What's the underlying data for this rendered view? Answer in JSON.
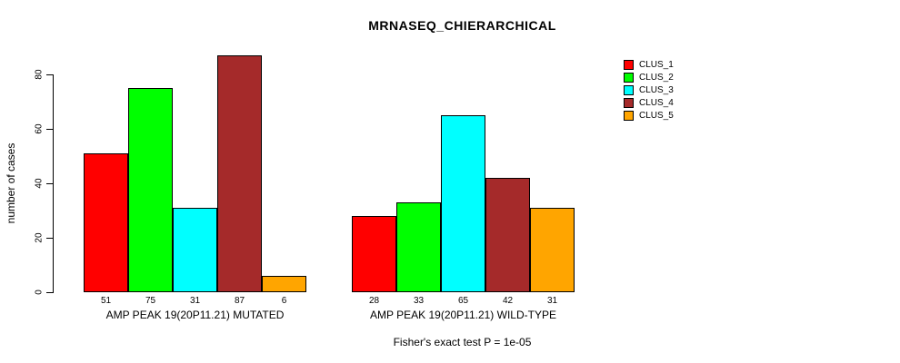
{
  "chart_data": {
    "type": "bar",
    "title": "MRNASEQ_CHIERARCHICAL",
    "ylabel": "number of cases",
    "xlabel": "",
    "ylim": [
      0,
      90
    ],
    "yticks": [
      0,
      20,
      40,
      60,
      80
    ],
    "grid": false,
    "categories": [
      "AMP PEAK 19(20P11.21) MUTATED",
      "AMP PEAK 19(20P11.21) WILD-TYPE"
    ],
    "series": [
      {
        "name": "CLUS_1",
        "color": "#FF0000",
        "values": [
          51,
          28
        ]
      },
      {
        "name": "CLUS_2",
        "color": "#00FF00",
        "values": [
          75,
          33
        ]
      },
      {
        "name": "CLUS_3",
        "color": "#00FFFF",
        "values": [
          31,
          65
        ]
      },
      {
        "name": "CLUS_4",
        "color": "#A52A2A",
        "values": [
          87,
          42
        ]
      },
      {
        "name": "CLUS_5",
        "color": "#FFA500",
        "values": [
          6,
          31
        ]
      }
    ],
    "bar_value_labels": {
      "MUTATED": [
        51,
        75,
        31,
        87,
        6
      ],
      "WILD-TYPE": [
        28,
        33,
        65,
        42,
        31
      ]
    },
    "legend": {
      "position": "right",
      "entries": [
        "CLUS_1",
        "CLUS_2",
        "CLUS_3",
        "CLUS_4",
        "CLUS_5"
      ]
    },
    "footnote": "Fisher's exact test P = 1e-05",
    "background": "#FFFFFF",
    "axis_color": "#000000"
  }
}
